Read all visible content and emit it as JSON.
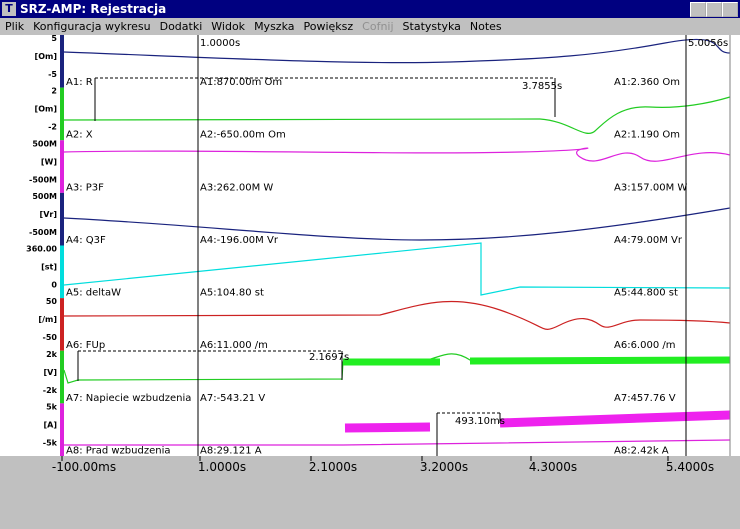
{
  "window": {
    "icon": "T",
    "title": "SRZ-AMP: Rejestracja"
  },
  "menu": [
    "Plik",
    "Konfiguracja wykresu",
    "Dodatki",
    "Widok",
    "Myszka",
    "Powiększ",
    "Cofnij",
    "Statystyka",
    "Notes"
  ],
  "cursors": {
    "left": "1.0000s",
    "right": "5.0056s"
  },
  "channels": [
    {
      "scale_top": "5",
      "unit": "[Om]",
      "scale_bottom": "-5",
      "name": "A1: R",
      "left_value": "A1:870.00m Om",
      "right_value": "A1:2.360 Om"
    },
    {
      "scale_top": "2",
      "unit": "[Om]",
      "scale_bottom": "-2",
      "name": "A2: X",
      "left_value": "A2:-650.00m Om",
      "right_value": "A2:1.190 Om"
    },
    {
      "scale_top": "500M",
      "unit": "[W]",
      "scale_bottom": "-500M",
      "name": "A3: P3F",
      "left_value": "A3:262.00M W",
      "right_value": "A3:157.00M W"
    },
    {
      "scale_top": "500M",
      "unit": "[Vr]",
      "scale_bottom": "-500M",
      "name": "A4: Q3F",
      "left_value": "A4:-196.00M Vr",
      "right_value": "A4:79.00M Vr"
    },
    {
      "scale_top": "360.00",
      "unit": "[st]",
      "scale_bottom": "0",
      "name": "A5: deltaW",
      "left_value": "A5:104.80 st",
      "right_value": "A5:44.800 st"
    },
    {
      "scale_top": "50",
      "unit": "[/m]",
      "scale_bottom": "-50",
      "name": "A6: FUp",
      "left_value": "A6:11.000 /m",
      "right_value": "A6:6.000 /m"
    },
    {
      "scale_top": "2k",
      "unit": "[V]",
      "scale_bottom": "-2k",
      "name": "A7: Napiecie wzbudzenia",
      "left_value": "A7:-543.21 V",
      "right_value": "A7:457.76 V"
    },
    {
      "scale_top": "5k",
      "unit": "[A]",
      "scale_bottom": "-5k",
      "name": "A8: Prad wzbudzenia",
      "left_value": "A8:29.121 A",
      "right_value": "A8:2.42k A"
    }
  ],
  "measurements": [
    "3.7855s",
    "2.1697s",
    "493.10ms"
  ],
  "x_axis": [
    "-100.00ms",
    "1.0000s",
    "2.1000s",
    "3.2000s",
    "4.3000s",
    "5.4000s"
  ]
}
